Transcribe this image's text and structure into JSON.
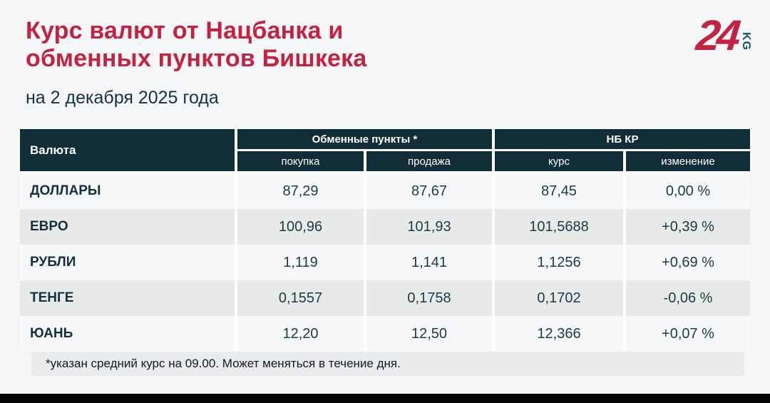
{
  "header": {
    "title_line1": "Курс валют от Нацбанка и",
    "title_line2": "обменных пунктов Бишкека",
    "date": "на 2 декабря 2025 года",
    "logo": {
      "number": "24",
      "suffix": "KG"
    }
  },
  "table": {
    "col_currency": "Валюта",
    "group_exchange": "Обменные пункты *",
    "group_nbkr": "НБ КР",
    "sub_buy": "покупка",
    "sub_sell": "продажа",
    "sub_rate": "курс",
    "sub_change": "изменение",
    "rows": [
      {
        "currency": "ДОЛЛАРЫ",
        "buy": "87,29",
        "sell": "87,67",
        "rate": "87,45",
        "change": "0,00 %"
      },
      {
        "currency": "ЕВРО",
        "buy": "100,96",
        "sell": "101,93",
        "rate": "101,5688",
        "change": "+0,39 %"
      },
      {
        "currency": "РУБЛИ",
        "buy": "1,119",
        "sell": "1,141",
        "rate": "1,1256",
        "change": "+0,69 %"
      },
      {
        "currency": "ТЕНГЕ",
        "buy": "0,1557",
        "sell": "0,1758",
        "rate": "0,1702",
        "change": "-0,06 %"
      },
      {
        "currency": "ЮАНЬ",
        "buy": "12,20",
        "sell": "12,50",
        "rate": "12,366",
        "change": "+0,07 %"
      }
    ],
    "footnote": "*указан средний курс на 09.00. Может меняться в течение дня."
  },
  "colors": {
    "accent_red": "#c32340",
    "header_bg": "#112e38",
    "row_light": "#f6f8f9",
    "row_gray": "#e8eaea",
    "page_bg": "#f5f6f8",
    "logo_kg_teal": "#17565f",
    "bottom_bar": "#050505"
  },
  "chart_data": {
    "type": "table",
    "title": "Курс валют от Нацбанка и обменных пунктов Бишкека",
    "subtitle": "на 2 декабря 2025 года",
    "column_groups": [
      "Валюта",
      "Обменные пункты *",
      "НБ КР"
    ],
    "columns": [
      "Валюта",
      "покупка",
      "продажа",
      "курс",
      "изменение"
    ],
    "rows": [
      [
        "ДОЛЛАРЫ",
        "87,29",
        "87,67",
        "87,45",
        "0,00 %"
      ],
      [
        "ЕВРО",
        "100,96",
        "101,93",
        "101,5688",
        "+0,39 %"
      ],
      [
        "РУБЛИ",
        "1,119",
        "1,141",
        "1,1256",
        "+0,69 %"
      ],
      [
        "ТЕНГЕ",
        "0,1557",
        "0,1758",
        "0,1702",
        "-0,06 %"
      ],
      [
        "ЮАНЬ",
        "12,20",
        "12,50",
        "12,366",
        "+0,07 %"
      ]
    ],
    "footnote": "*указан средний курс на 09.00. Может меняться в течение дня."
  }
}
